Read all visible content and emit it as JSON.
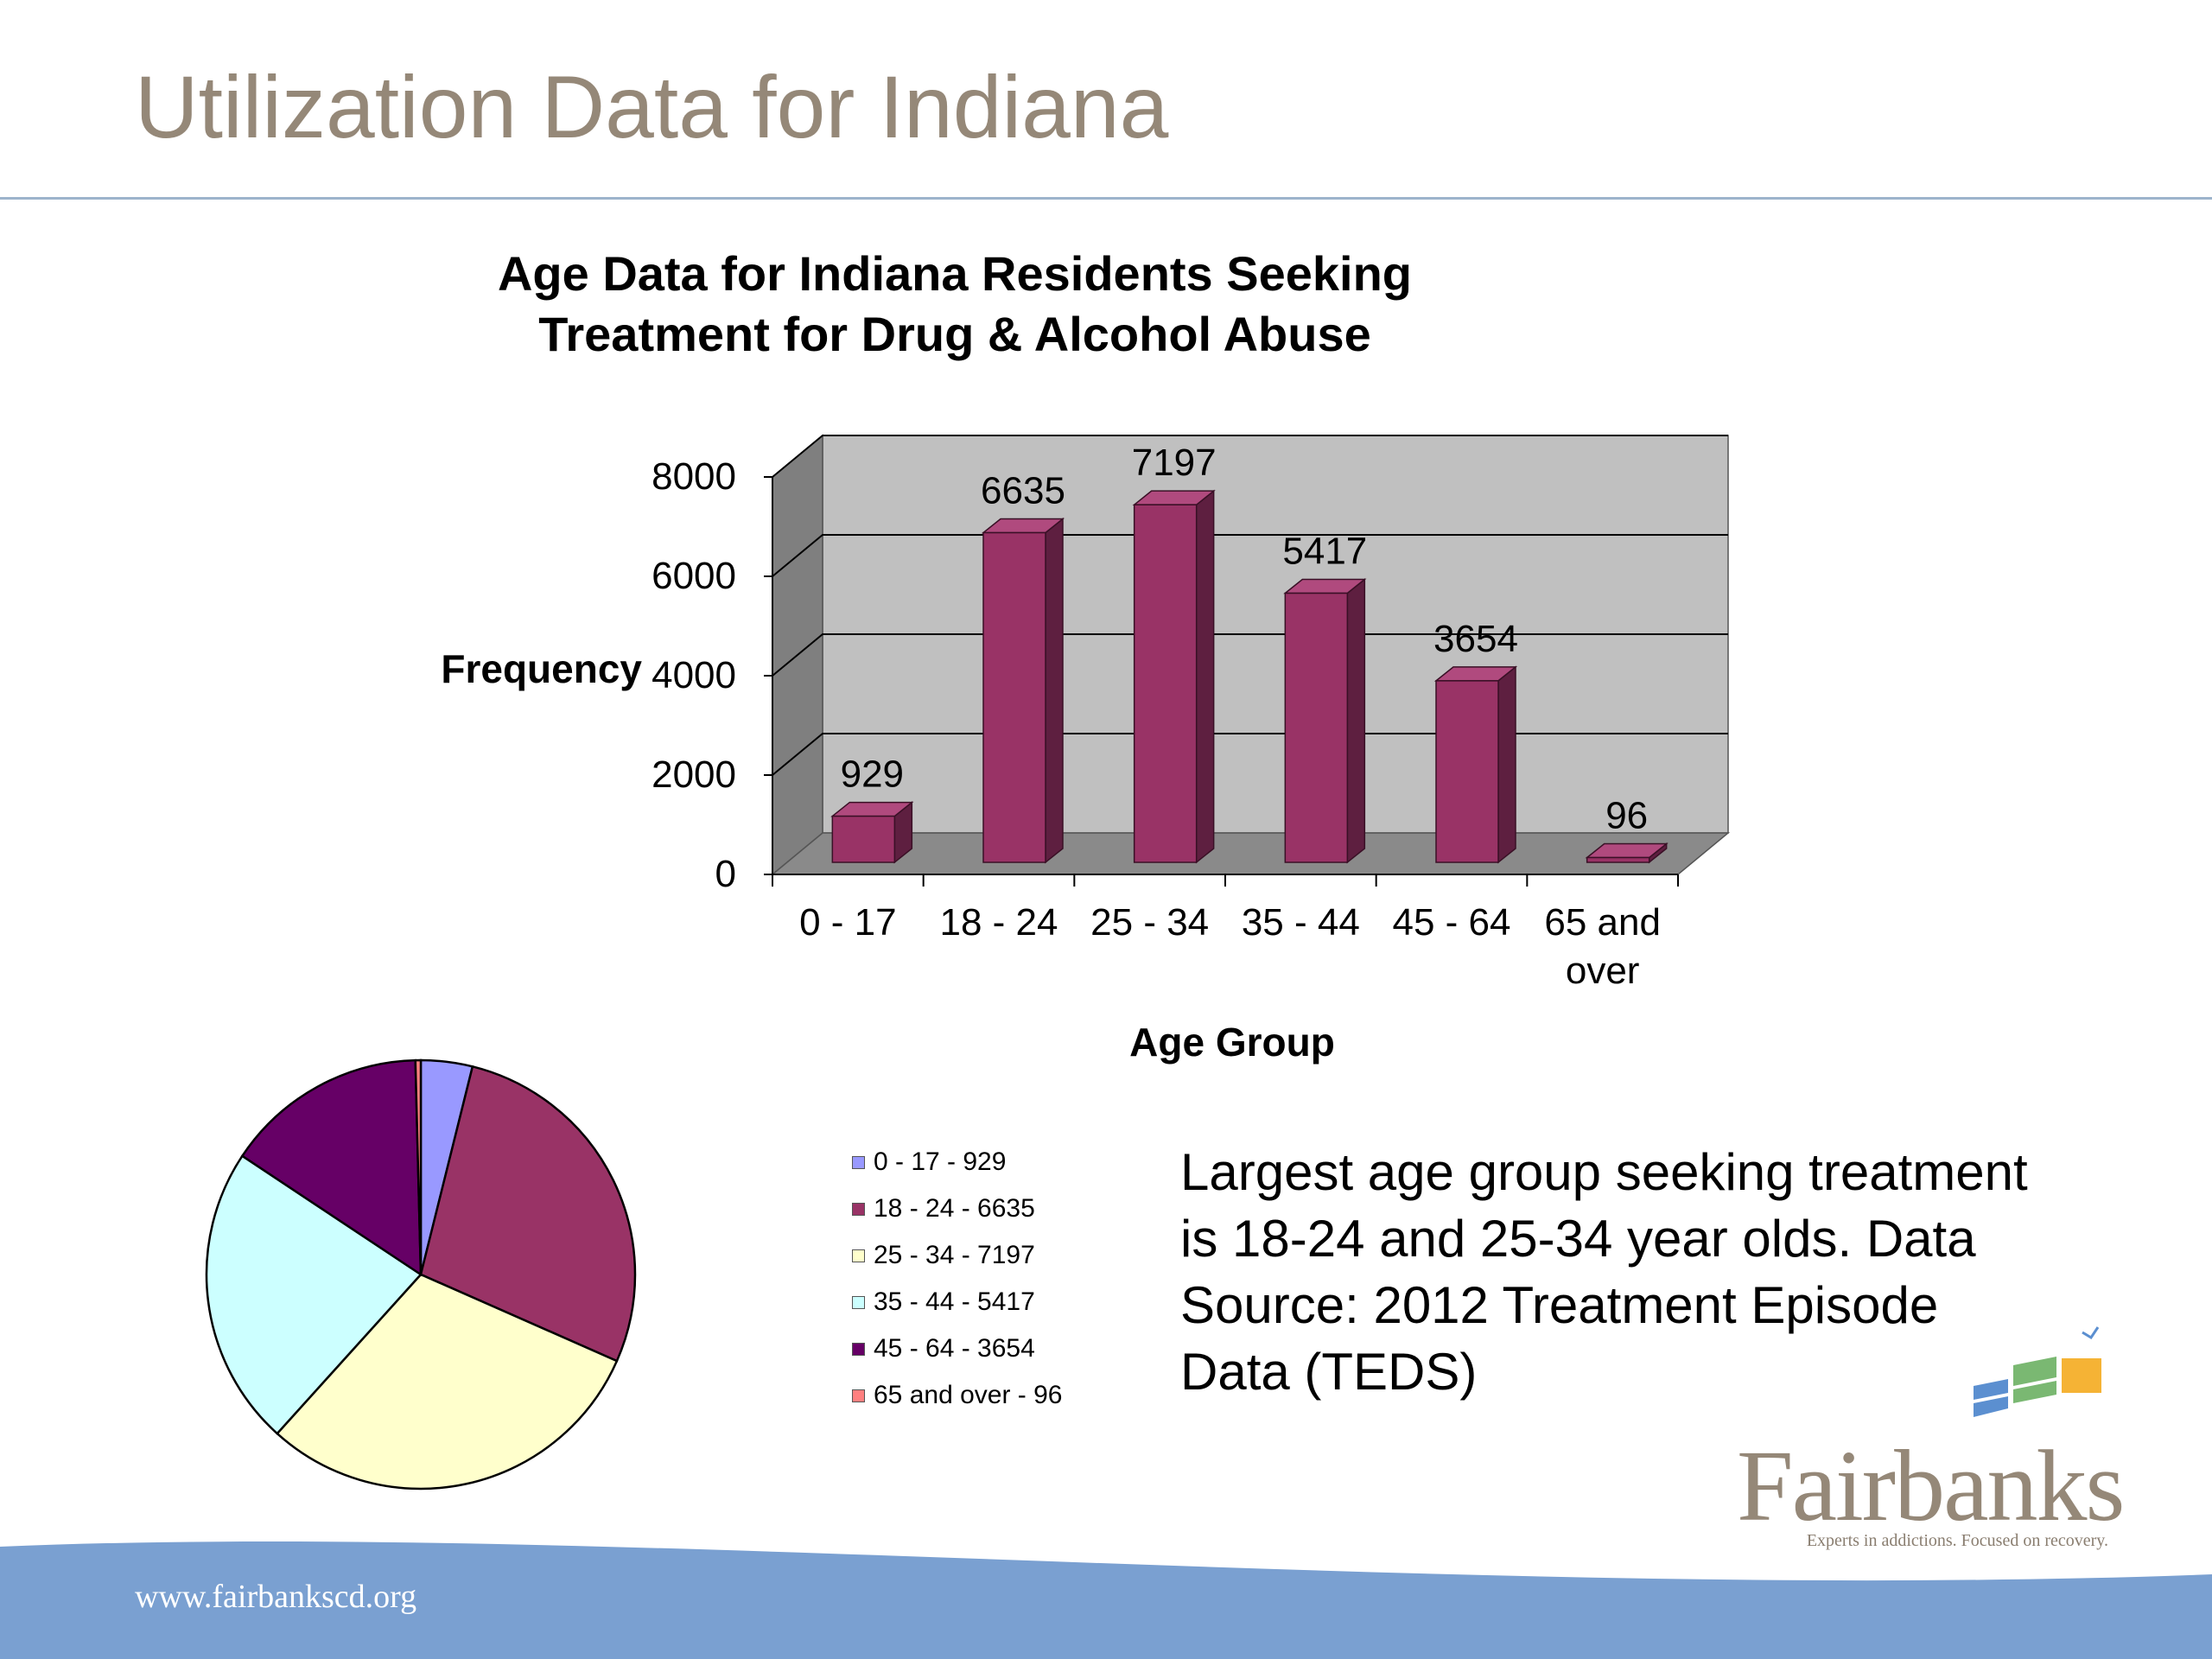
{
  "slide": {
    "title": "Utilization Data for Indiana",
    "note": "Largest age group seeking treatment is 18-24 and 25-34 year olds. Data Source: 2012 Treatment Episode Data (TEDS)",
    "footer_url": "www.fairbankscd.org",
    "logo_name": "Fairbanks",
    "logo_tagline": "Experts in addictions. Focused on recovery.",
    "colors": {
      "title": "#958878",
      "rule": "#9db4cc",
      "footer": "#7aa0d1",
      "bar": "#993366",
      "plot_back": "#c0c0c0"
    }
  },
  "chart_data": [
    {
      "type": "bar",
      "title": "Age Data for Indiana Residents Seeking Treatment for Drug & Alcohol Abuse",
      "xlabel": "Age Group",
      "ylabel": "Frequency",
      "categories": [
        "0 - 17",
        "18 - 24",
        "25 - 34",
        "35 - 44",
        "45 - 64",
        "65 and over"
      ],
      "values": [
        929,
        6635,
        7197,
        5417,
        3654,
        96
      ],
      "data_labels": [
        "929",
        "6635",
        "7197",
        "5417",
        "3654",
        "96"
      ],
      "y_ticks": [
        "0",
        "2000",
        "4000",
        "6000",
        "8000"
      ],
      "ylim": [
        0,
        8000
      ],
      "grid": true,
      "style": "3d",
      "color": "#993366"
    },
    {
      "type": "pie",
      "labels": [
        "0 - 17 - 929",
        "18 - 24 - 6635",
        "25 - 34 - 7197",
        "35 - 44 - 5417",
        "45 - 64 - 3654",
        "65 and over - 96"
      ],
      "values": [
        929,
        6635,
        7197,
        5417,
        3654,
        96
      ],
      "colors": [
        "#9999ff",
        "#993366",
        "#ffffcc",
        "#ccffff",
        "#660066",
        "#ff8080"
      ],
      "legend_position": "right"
    }
  ]
}
